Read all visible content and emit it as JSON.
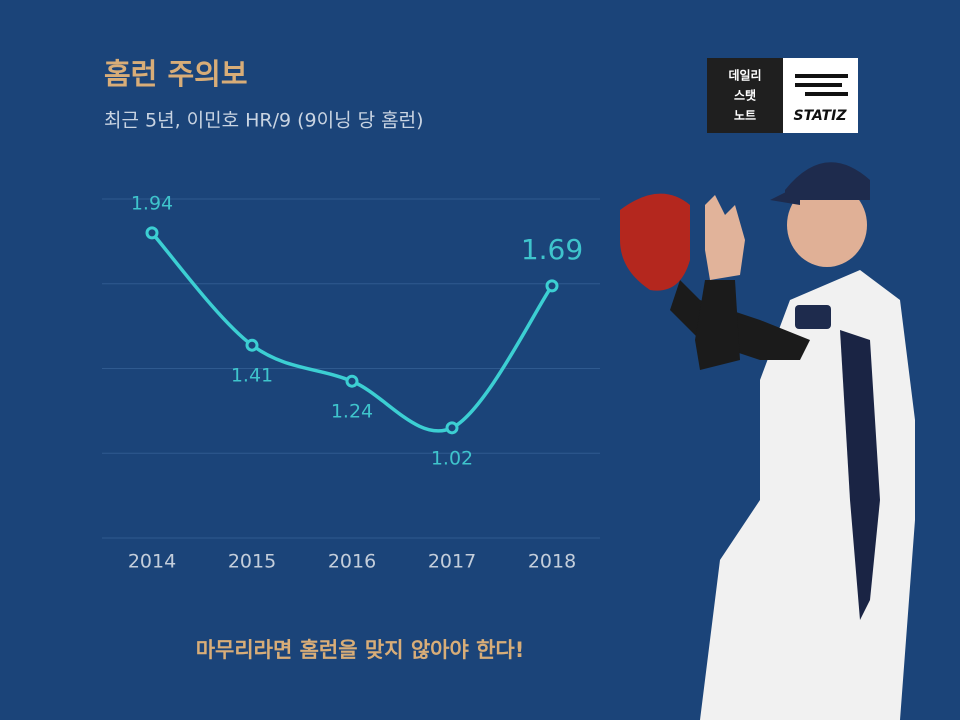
{
  "chart_data": {
    "type": "line",
    "title": "홈런 주의보",
    "subtitle": "최근 5년, 이민호 HR/9 (9이닝 당 홈런)",
    "footnote": "마무리라면 홈런을 맞지 않아야 한다!",
    "categories": [
      "2014",
      "2015",
      "2016",
      "2017",
      "2018"
    ],
    "values": [
      1.94,
      1.41,
      1.24,
      1.02,
      1.69
    ],
    "color": "#3ccfd3",
    "ylim": [
      0.5,
      2.1
    ],
    "yticks": [
      0.5,
      0.9,
      1.3,
      1.7,
      2.1
    ],
    "grid": true,
    "y_tick_labels": false,
    "smooth": true
  },
  "logo": {
    "lines": [
      "데일리",
      "스탯",
      "노트"
    ],
    "brand": "STATIZ"
  }
}
